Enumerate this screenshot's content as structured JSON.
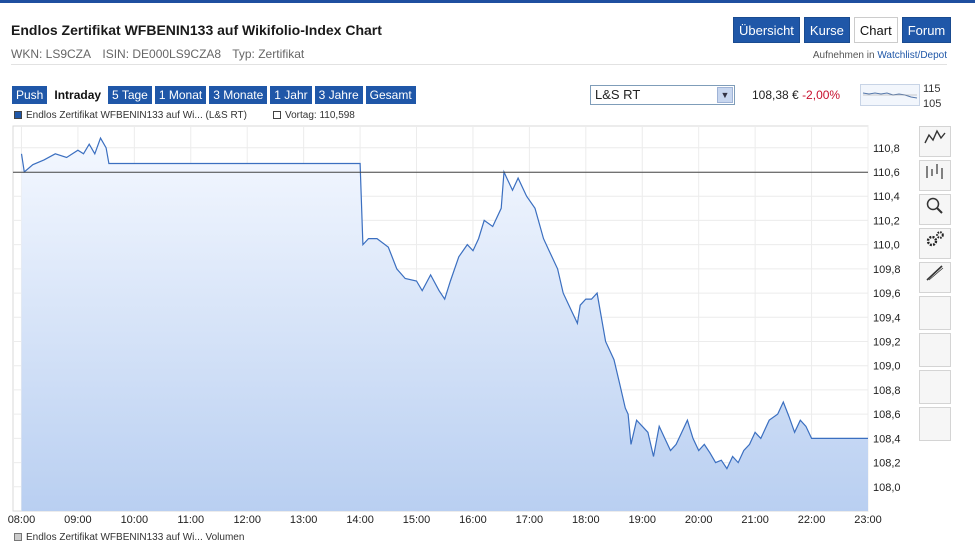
{
  "header": {
    "title": "Endlos Zertifikat WFBENIN133 auf Wikifolio-Index Chart",
    "wkn": "WKN: LS9CZA",
    "isin": "ISIN: DE000LS9CZA8",
    "typ": "Typ: Zertifikat",
    "watchlist_prefix": "Aufnehmen in",
    "watchlist_link": "Watchlist/Depot"
  },
  "tabs": [
    {
      "label": "Übersicht"
    },
    {
      "label": "Kurse"
    },
    {
      "label": "Chart"
    },
    {
      "label": "Forum"
    }
  ],
  "ranges": [
    {
      "label": "Push"
    },
    {
      "label": "Intraday"
    },
    {
      "label": "5 Tage"
    },
    {
      "label": "1 Monat"
    },
    {
      "label": "3 Monate"
    },
    {
      "label": "1 Jahr"
    },
    {
      "label": "3 Jahre"
    },
    {
      "label": "Gesamt"
    }
  ],
  "exchange": {
    "selected": "L&S RT"
  },
  "quote": {
    "price": "108,38 €",
    "change": "-2,00%"
  },
  "mini_chart": {
    "high_label": "115",
    "low_label": "105"
  },
  "legend": {
    "series_label": "Endlos Zertifikat WFBENIN133 auf Wi... (L&S RT)",
    "prev_label": "Vortag: 110,598"
  },
  "volume_legend": "Endlos Zertifikat WFBENIN133 auf Wi... Volumen",
  "sidebar_icons": [
    "line-chart-icon",
    "ohlc-chart-icon",
    "zoom-icon",
    "settings-icon",
    "draw-icon"
  ],
  "colors": {
    "accent": "#1f57a8",
    "line": "#3b6fc0",
    "fill_top": "#f4f8ff",
    "fill_bottom": "#b9cff1",
    "change_neg": "#c8102e"
  },
  "chart_data": {
    "type": "area",
    "x_ticks": [
      "08:00",
      "09:00",
      "10:00",
      "11:00",
      "12:00",
      "13:00",
      "14:00",
      "15:00",
      "16:00",
      "17:00",
      "18:00",
      "19:00",
      "20:00",
      "21:00",
      "22:00",
      "23:00"
    ],
    "y_ticks": [
      "110,8",
      "110,6",
      "110,4",
      "110,2",
      "110,0",
      "109,8",
      "109,6",
      "109,4",
      "109,2",
      "109,0",
      "108,8",
      "108,6",
      "108,4",
      "108,2",
      "108,0"
    ],
    "ylim": [
      107.8,
      110.98
    ],
    "xlim_hours": [
      7.85,
      23.0
    ],
    "reference_line": 110.598,
    "x_hours": [
      8.0,
      8.05,
      8.2,
      8.4,
      8.6,
      8.8,
      9.0,
      9.1,
      9.2,
      9.3,
      9.4,
      9.5,
      9.55,
      14.0,
      14.05,
      14.15,
      14.3,
      14.5,
      14.65,
      14.8,
      15.0,
      15.1,
      15.25,
      15.4,
      15.5,
      15.6,
      15.75,
      15.9,
      16.0,
      16.1,
      16.2,
      16.35,
      16.5,
      16.55,
      16.6,
      16.7,
      16.8,
      16.95,
      17.1,
      17.25,
      17.35,
      17.5,
      17.6,
      17.75,
      17.85,
      17.9,
      18.0,
      18.1,
      18.2,
      18.35,
      18.5,
      18.6,
      18.7,
      18.75,
      18.8,
      18.9,
      19.0,
      19.1,
      19.2,
      19.3,
      19.4,
      19.5,
      19.6,
      19.7,
      19.8,
      19.9,
      20.0,
      20.1,
      20.2,
      20.3,
      20.4,
      20.5,
      20.6,
      20.7,
      20.8,
      20.9,
      21.0,
      21.1,
      21.25,
      21.4,
      21.5,
      21.6,
      21.7,
      21.8,
      21.9,
      22.0,
      22.5,
      23.0
    ],
    "values": [
      110.75,
      110.6,
      110.66,
      110.7,
      110.75,
      110.72,
      110.78,
      110.75,
      110.83,
      110.75,
      110.88,
      110.8,
      110.67,
      110.67,
      110.0,
      110.05,
      110.05,
      109.98,
      109.8,
      109.72,
      109.7,
      109.62,
      109.75,
      109.62,
      109.55,
      109.7,
      109.9,
      110.0,
      109.95,
      110.05,
      110.2,
      110.15,
      110.3,
      110.6,
      110.55,
      110.45,
      110.55,
      110.4,
      110.3,
      110.05,
      109.95,
      109.8,
      109.6,
      109.45,
      109.35,
      109.5,
      109.55,
      109.55,
      109.6,
      109.2,
      109.05,
      108.85,
      108.65,
      108.6,
      108.35,
      108.55,
      108.5,
      108.45,
      108.25,
      108.5,
      108.4,
      108.3,
      108.35,
      108.45,
      108.55,
      108.4,
      108.3,
      108.35,
      108.28,
      108.2,
      108.22,
      108.15,
      108.25,
      108.2,
      108.3,
      108.35,
      108.45,
      108.4,
      108.55,
      108.6,
      108.7,
      108.58,
      108.45,
      108.55,
      108.5,
      108.4,
      108.4,
      108.4
    ],
    "title": "",
    "xlabel": "",
    "ylabel": ""
  }
}
